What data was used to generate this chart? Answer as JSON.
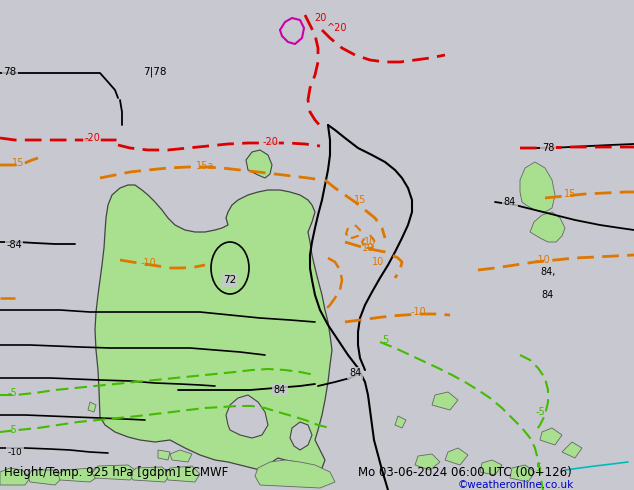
{
  "title_left": "Height/Temp. 925 hPa [gdpm] ECMWF",
  "title_right": "Mo 03-06-2024 06:00 UTC (00+126)",
  "watermark": "©weatheronline.co.uk",
  "bg_color": "#c8c8d0",
  "australia_fill": "#a8e090",
  "island_fill": "#a8e090",
  "fig_width": 6.34,
  "fig_height": 4.9,
  "dpi": 100,
  "bottom_text_color": "#000000",
  "watermark_color": "#0000cc",
  "font_size_bottom": 8.5
}
